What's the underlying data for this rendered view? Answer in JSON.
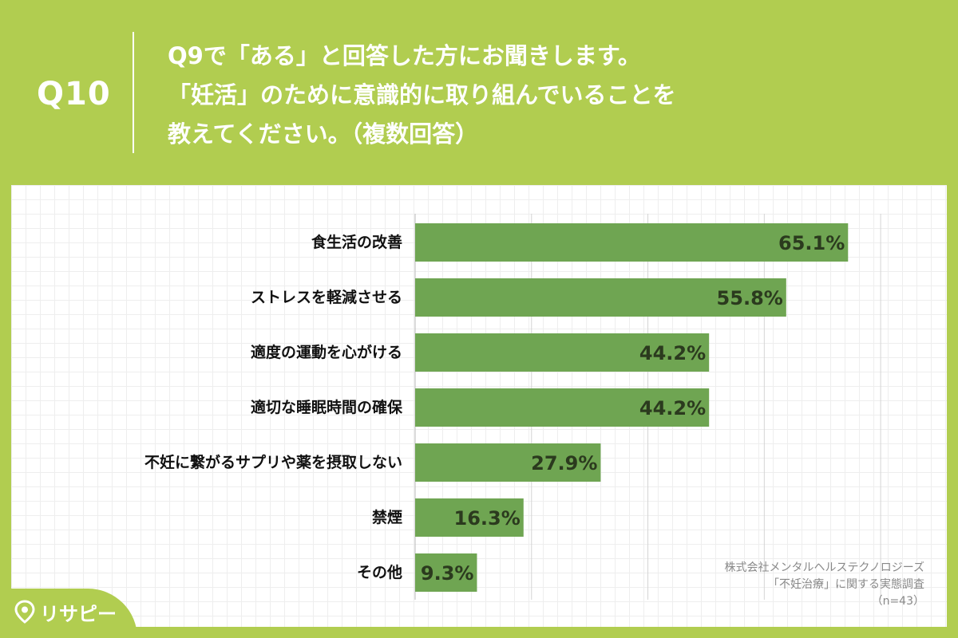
{
  "header": {
    "question_number": "Q10",
    "question_lines": [
      "Q9で「ある」と回答した方にお聞きします。",
      "「妊活」のために意識的に取り組んでいることを",
      "教えてください。（複数回答）"
    ]
  },
  "source": {
    "lines": [
      "株式会社メンタルヘルステクノロジーズ",
      "「不妊治療」に関する実態調査",
      "（n=43）"
    ]
  },
  "logo": {
    "text": "リサピー",
    "icon": "location-pin-icon"
  },
  "colors": {
    "background": "#b1cd50",
    "bar": "#6fa552",
    "bar_label": "#2b3a1e",
    "category_label": "#111111"
  },
  "chart_data": {
    "type": "bar",
    "orientation": "horizontal",
    "categories": [
      "食生活の改善",
      "ストレスを軽減させる",
      "適度の運動を心がける",
      "適切な睡眠時間の確保",
      "不妊に繋がるサプリや薬を摂取しない",
      "禁煙",
      "その他"
    ],
    "values": [
      65.1,
      55.8,
      44.2,
      44.2,
      27.9,
      16.3,
      9.3
    ],
    "value_labels": [
      "65.1%",
      "55.8%",
      "44.2%",
      "44.2%",
      "27.9%",
      "16.3%",
      "9.3%"
    ],
    "unit": "%",
    "xlim": [
      0,
      70
    ],
    "grid_x": [
      0,
      17.5,
      35,
      52.5,
      70
    ],
    "grid": true,
    "legend": "none"
  }
}
